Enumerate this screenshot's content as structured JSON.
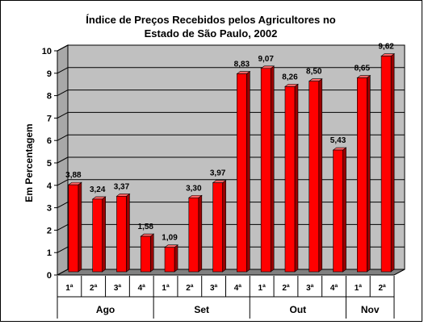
{
  "chart_data": {
    "type": "bar",
    "title_lines": [
      "Índice de Preços Recebidos pelos Agricultores no",
      "Estado de São Paulo, 2002"
    ],
    "ylabel": "Em Percentagem",
    "ylim": [
      0,
      10
    ],
    "yticks": [
      "0",
      "1",
      "2",
      "3",
      "4",
      "5",
      "6",
      "7",
      "8",
      "9",
      "10"
    ],
    "categories": [
      "1ª",
      "2ª",
      "3ª",
      "4ª",
      "1ª",
      "2ª",
      "3ª",
      "4ª",
      "1ª",
      "2ª",
      "3ª",
      "4ª",
      "1ª",
      "2ª"
    ],
    "values": [
      3.88,
      3.24,
      3.37,
      1.58,
      1.09,
      3.3,
      3.97,
      8.83,
      9.07,
      8.26,
      8.5,
      5.43,
      8.65,
      9.62
    ],
    "value_labels": [
      "3,88",
      "3,24",
      "3,37",
      "1,58",
      "1,09",
      "3,30",
      "3,97",
      "8,83",
      "9,07",
      "8,26",
      "8,50",
      "5,43",
      "8,65",
      "9,62"
    ],
    "groups": [
      {
        "label": "Ago",
        "count": 4
      },
      {
        "label": "Set",
        "count": 4
      },
      {
        "label": "Out",
        "count": 4
      },
      {
        "label": "Nov",
        "count": 2
      }
    ],
    "grid": true,
    "legend": "none",
    "colors": {
      "bar_front": "#ff0000",
      "bar_side": "#990000",
      "bar_top": "#ff6666",
      "wall": "#c0c0c0",
      "floor": "#808080"
    }
  }
}
